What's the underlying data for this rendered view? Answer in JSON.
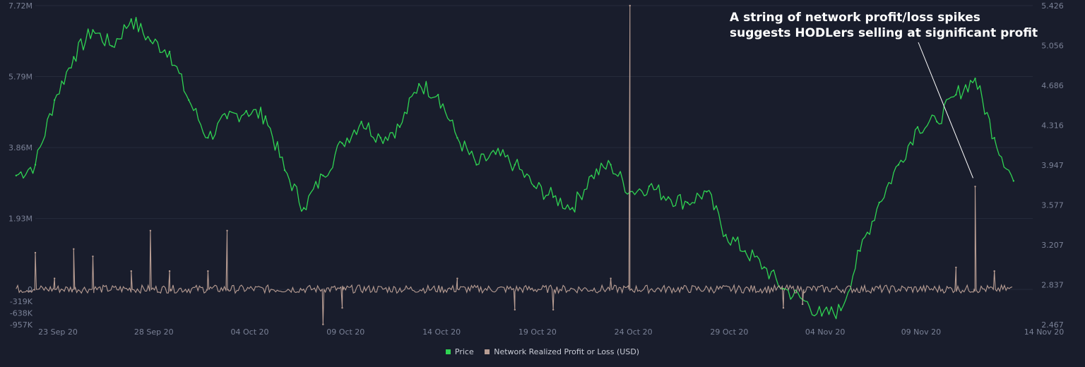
{
  "colors": {
    "background": "#191d2c",
    "price": "#2fd352",
    "pnl": "#b89d93",
    "tick": "#7a8196",
    "grid": "#262b3b"
  },
  "chart_data": {
    "type": "line",
    "x_tick_labels": [
      "23 Sep 20",
      "28 Sep 20",
      "04 Oct 20",
      "09 Oct 20",
      "14 Oct 20",
      "19 Oct 20",
      "24 Oct 20",
      "29 Oct 20",
      "04 Nov 20",
      "09 Nov 20",
      "14 Nov 20"
    ],
    "x_range": [
      "2020-09-23",
      "2020-11-14"
    ],
    "y_left": {
      "tick_labels": [
        "7.72M",
        "5.79M",
        "3.86M",
        "1.93M",
        "0",
        "-319K",
        "-638K",
        "-957K"
      ],
      "range": [
        -957000,
        7720000
      ]
    },
    "y_right": {
      "tick_labels": [
        "5.426",
        "5.056",
        "4.686",
        "4.316",
        "3.947",
        "3.577",
        "3.207",
        "2.837",
        "2.467"
      ],
      "range": [
        2.467,
        5.426
      ]
    },
    "grid": true,
    "legend_placement": "bottom-center",
    "annotation": {
      "lines": [
        "A string of network profit/loss spikes",
        "suggests HODLers selling at significant profit"
      ]
    },
    "series": [
      {
        "name": "Price",
        "axis": "right",
        "color": "#2fd352",
        "x": [
          "2020-09-22",
          "2020-09-23",
          "2020-09-24",
          "2020-09-25",
          "2020-09-26",
          "2020-09-27",
          "2020-09-28",
          "2020-09-29",
          "2020-09-30",
          "2020-10-01",
          "2020-10-02",
          "2020-10-03",
          "2020-10-04",
          "2020-10-05",
          "2020-10-06",
          "2020-10-07",
          "2020-10-08",
          "2020-10-09",
          "2020-10-10",
          "2020-10-11",
          "2020-10-12",
          "2020-10-13",
          "2020-10-14",
          "2020-10-15",
          "2020-10-16",
          "2020-10-17",
          "2020-10-18",
          "2020-10-19",
          "2020-10-20",
          "2020-10-21",
          "2020-10-22",
          "2020-10-23",
          "2020-10-24",
          "2020-10-25",
          "2020-10-26",
          "2020-10-27",
          "2020-10-28",
          "2020-10-29",
          "2020-10-30",
          "2020-10-31",
          "2020-11-01",
          "2020-11-02",
          "2020-11-03",
          "2020-11-04",
          "2020-11-05",
          "2020-11-06",
          "2020-11-07",
          "2020-11-08",
          "2020-11-09",
          "2020-11-10",
          "2020-11-11",
          "2020-11-12",
          "2020-11-13"
        ],
        "values": [
          3.85,
          3.95,
          4.55,
          4.95,
          5.2,
          5.05,
          5.3,
          5.1,
          5.0,
          4.55,
          4.2,
          4.38,
          4.45,
          4.4,
          3.9,
          3.55,
          3.85,
          4.15,
          4.35,
          4.2,
          4.3,
          4.7,
          4.6,
          4.2,
          3.95,
          4.05,
          3.95,
          3.75,
          3.65,
          3.55,
          3.85,
          3.95,
          3.7,
          3.75,
          3.65,
          3.6,
          3.7,
          3.3,
          3.15,
          3.0,
          2.8,
          2.7,
          2.55,
          2.6,
          3.15,
          3.6,
          3.95,
          4.3,
          4.35,
          4.6,
          4.75,
          4.2,
          3.8
        ]
      },
      {
        "name": "Network Realized Profit or Loss (USD)",
        "axis": "left",
        "color": "#b89d93",
        "spikes": [
          {
            "x": "2020-09-23",
            "value": 1000000
          },
          {
            "x": "2020-09-24",
            "value": 300000
          },
          {
            "x": "2020-09-25",
            "value": 1100000
          },
          {
            "x": "2020-09-26",
            "value": 900000
          },
          {
            "x": "2020-09-28",
            "value": 500000
          },
          {
            "x": "2020-09-29",
            "value": 1600000
          },
          {
            "x": "2020-09-30",
            "value": 500000
          },
          {
            "x": "2020-10-02",
            "value": 500000
          },
          {
            "x": "2020-10-03",
            "value": 1600000
          },
          {
            "x": "2020-10-08",
            "value": -950000
          },
          {
            "x": "2020-10-09",
            "value": -500000
          },
          {
            "x": "2020-10-15",
            "value": 300000
          },
          {
            "x": "2020-10-18",
            "value": -550000
          },
          {
            "x": "2020-10-20",
            "value": -550000
          },
          {
            "x": "2020-10-23",
            "value": 300000
          },
          {
            "x": "2020-10-24",
            "value": 7720000
          },
          {
            "x": "2020-11-01",
            "value": -500000
          },
          {
            "x": "2020-11-02",
            "value": -400000
          },
          {
            "x": "2020-11-10",
            "value": 600000
          },
          {
            "x": "2020-11-11",
            "value": 2800000
          },
          {
            "x": "2020-11-12",
            "value": 500000
          }
        ]
      }
    ]
  }
}
